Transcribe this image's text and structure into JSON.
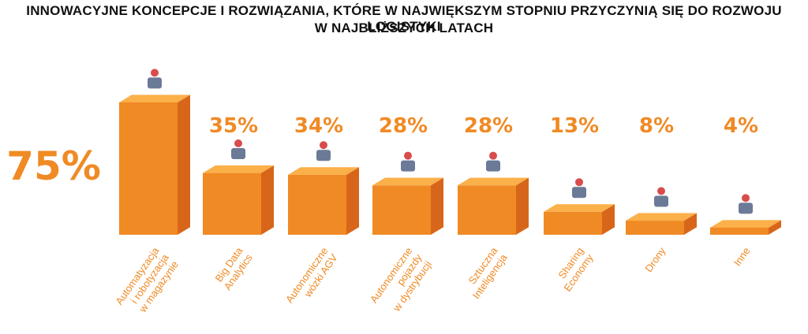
{
  "title_line1": "INNOWACYJNE KONCEPCJE I ROZWIĄZANIA, KTÓRE W NAJWIĘKSZYM STOPNIU PRZYCZYNIĄ SIĘ DO ROZWOJU LOGISTYKI",
  "title_line2": "W NAJBLIŻSZYCH LATACH",
  "colors": {
    "front": "#f08a24",
    "side": "#d8661a",
    "top": "#fbb04a",
    "text": "#f08a24",
    "title": "#111111"
  },
  "chart_data": {
    "type": "bar",
    "title": "INNOWACYJNE KONCEPCJE I ROZWIĄZANIA, KTÓRE W NAJWIĘKSZYM STOPNIU PRZYCZYNIĄ SIĘ DO ROZWOJU LOGISTYKI W NAJBLIŻSZYCH LATACH",
    "xlabel": "",
    "ylabel": "",
    "ylim": [
      0,
      75
    ],
    "grid": false,
    "categories": [
      "Automatyzacja i robotyzacja w magazynie",
      "Big Data Analytics",
      "Autonomiczne wózki AGV",
      "Autonomiczne pojazdy w dystrybucji",
      "Sztuczna Inteligencja",
      "Sharing Economy",
      "Drony",
      "Inne"
    ],
    "category_lines": [
      [
        "Automatyzacja",
        "i robotyzacja",
        "w magazynie"
      ],
      [
        "Big Data",
        "Analytics"
      ],
      [
        "Autonomiczne",
        "wózki AGV"
      ],
      [
        "Autonomiczne",
        "pojazdy",
        "w dystrybucji"
      ],
      [
        "Sztuczna",
        "Inteligencja"
      ],
      [
        "Sharing",
        "Economy"
      ],
      [
        "Drony"
      ],
      [
        "Inne"
      ]
    ],
    "values": [
      75,
      35,
      34,
      28,
      28,
      13,
      8,
      4
    ],
    "value_labels": [
      "75%",
      "35%",
      "34%",
      "28%",
      "28%",
      "13%",
      "8%",
      "4%"
    ],
    "icons": [
      "robot-and-worker-icon",
      "data-analytics-screen-icon",
      "agv-truck-icon",
      "car-location-pin-icon",
      "ai-robot-head-icon",
      "smartphone-sharing-icon",
      "drone-icon",
      "lightbulb-icon"
    ]
  }
}
